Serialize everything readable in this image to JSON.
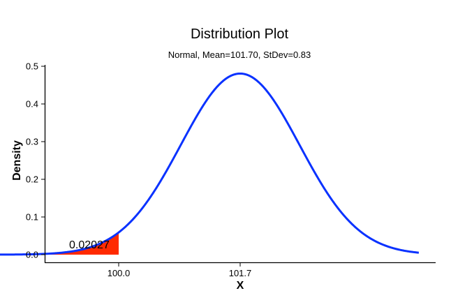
{
  "chart_data": {
    "type": "area",
    "title": "Distribution Plot",
    "subtitle": "Normal, Mean=101.70, StDev=0.83",
    "xlabel": "X",
    "ylabel": "Density",
    "distribution": {
      "name": "Normal",
      "mean": 101.7,
      "stdev": 0.83
    },
    "xlim": [
      97.4,
      104.9
    ],
    "ylim": [
      0.0,
      0.5
    ],
    "x_ticks": [
      100.0,
      101.7
    ],
    "x_tick_labels": [
      "100.0",
      "101.7"
    ],
    "y_ticks": [
      0.0,
      0.1,
      0.2,
      0.3,
      0.4,
      0.5
    ],
    "y_tick_labels": [
      "0.0",
      "0.1",
      "0.2",
      "0.3",
      "0.4",
      "0.5"
    ],
    "curve_range": [
      97.75,
      104.2
    ],
    "peak_density": 0.48,
    "shaded_region": {
      "from": 97.75,
      "to": 100.0,
      "area": 0.02027,
      "color": "#ff2a00"
    },
    "annotations": [
      {
        "text": "0.02027",
        "x": 98.9,
        "y": 0.02
      }
    ],
    "grid": false,
    "legend": null,
    "colors": {
      "curve": "#0a32ff",
      "shade": "#ff2a00",
      "axis": "#000000"
    }
  }
}
